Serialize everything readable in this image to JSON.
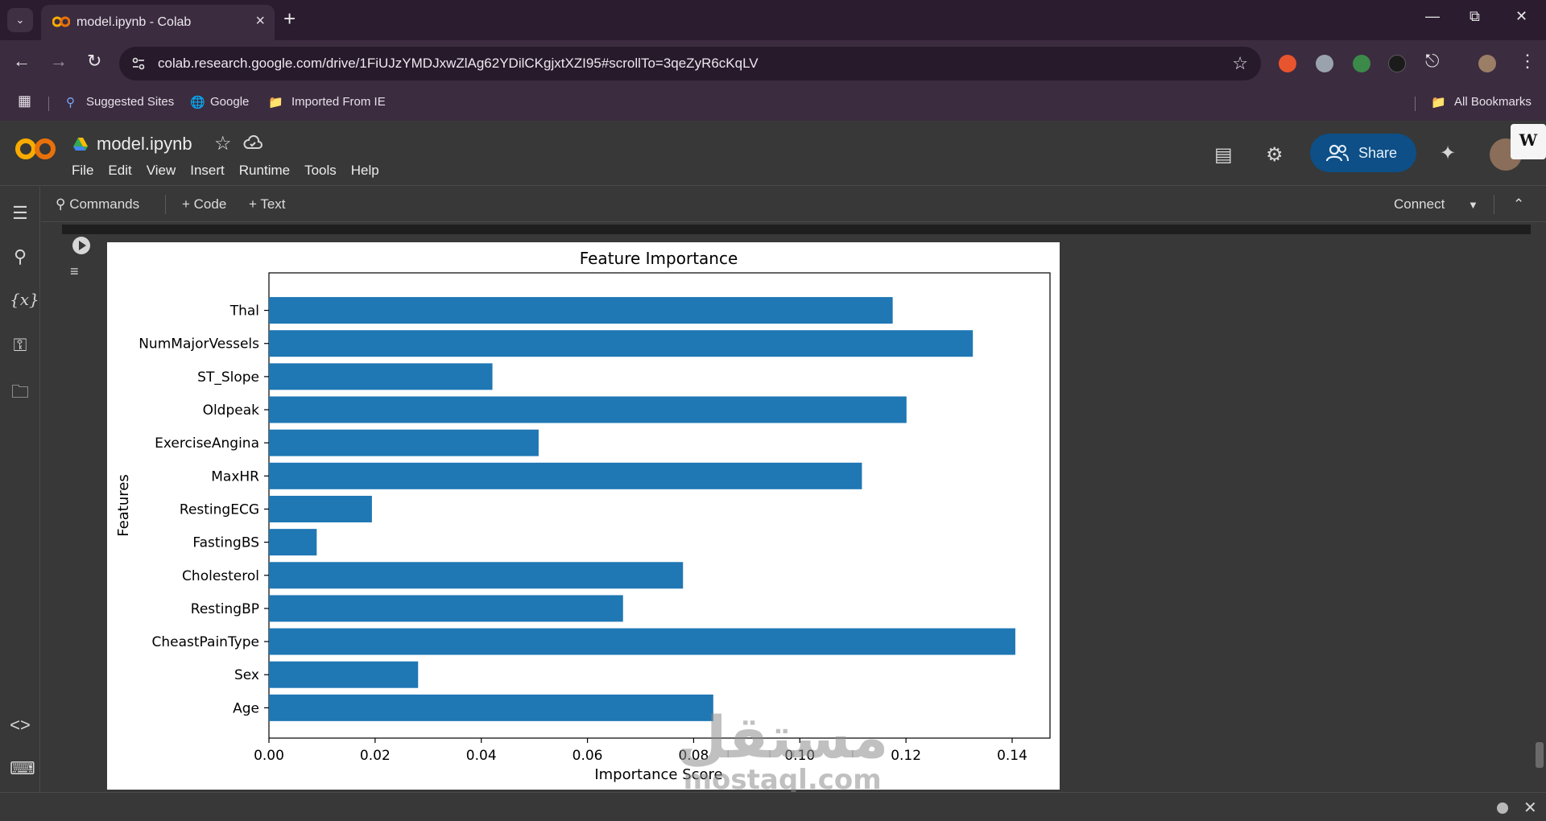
{
  "browser": {
    "tab_title": "model.ipynb - Colab",
    "url": "colab.research.google.com/drive/1FiUJzYMDJxwZlAg62YDilCKgjxtXZI95#scrollTo=3qeZyR6cKqLV",
    "bookmarks": [
      "Suggested Sites",
      "Google",
      "Imported From IE"
    ],
    "all_bookmarks": "All Bookmarks"
  },
  "colab": {
    "notebook_title": "model.ipynb",
    "menu": [
      "File",
      "Edit",
      "View",
      "Insert",
      "Runtime",
      "Tools",
      "Help"
    ],
    "share_label": "Share",
    "commands_label": "Commands",
    "add_code_label": "+ Code",
    "add_text_label": "+ Text",
    "connect_label": "Connect",
    "accent": "#0d4f86"
  },
  "watermark": {
    "arabic": "مستقل",
    "latin": "mostaql.com"
  },
  "chart_data": {
    "type": "bar",
    "orientation": "horizontal",
    "title": "Feature Importance",
    "xlabel": "Importance Score",
    "ylabel": "Features",
    "categories": [
      "Age",
      "Sex",
      "CheastPainType",
      "RestingBP",
      "Cholesterol",
      "FastingBS",
      "RestingECG",
      "MaxHR",
      "ExerciseAngina",
      "Oldpeak",
      "ST_Slope",
      "NumMajorVessels",
      "Thal"
    ],
    "values": [
      0.0837,
      0.0281,
      0.1406,
      0.0667,
      0.078,
      0.009,
      0.0194,
      0.1117,
      0.0508,
      0.1201,
      0.0421,
      0.1326,
      0.1175
    ],
    "xlim": [
      0.0,
      0.148
    ],
    "xticks": [
      "0.00",
      "0.02",
      "0.04",
      "0.06",
      "0.08",
      "0.10",
      "0.12",
      "0.14"
    ],
    "xtick_values": [
      0.0,
      0.02,
      0.04,
      0.06,
      0.08,
      0.1,
      0.12,
      0.14
    ],
    "bar_color": "#1f77b4",
    "grid": false
  }
}
